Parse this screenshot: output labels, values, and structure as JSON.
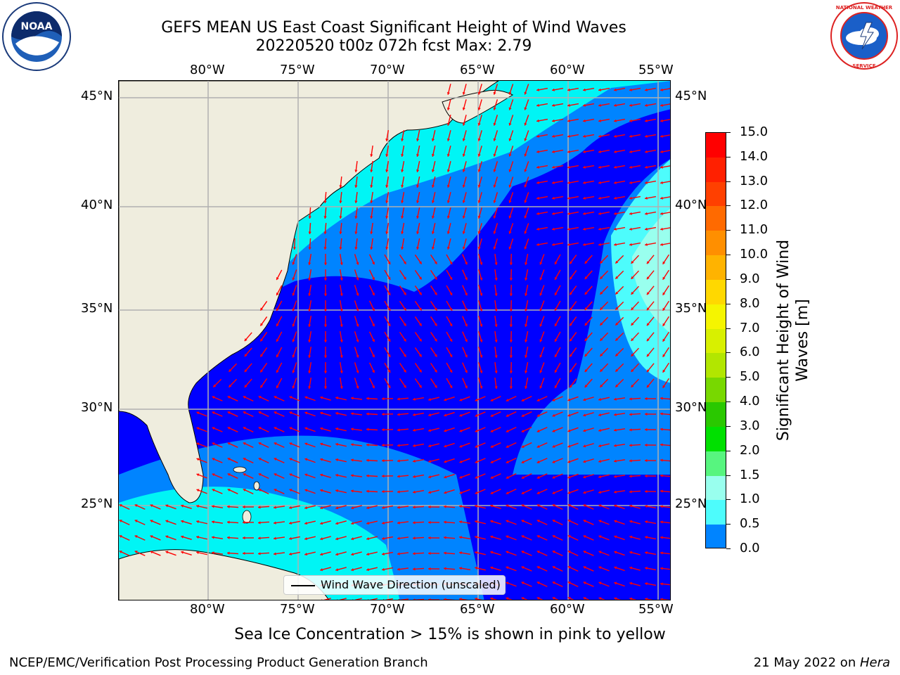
{
  "title": {
    "line1": "GEFS MEAN US East Coast Significant Height of Wind Waves",
    "line2": "20220520 t00z 072h fcst   Max: 2.79"
  },
  "logos": {
    "left": {
      "name": "noaa-logo",
      "text": "NOAA"
    },
    "right": {
      "name": "nws-logo",
      "text": "NATIONAL WEATHER SERVICE"
    }
  },
  "map": {
    "lon_ticks": [
      "80°W",
      "75°W",
      "70°W",
      "65°W",
      "60°W",
      "55°W"
    ],
    "lat_ticks": [
      "45°N",
      "40°N",
      "35°N",
      "30°N",
      "25°N"
    ],
    "legend_label": "Wind Wave Direction (unscaled)",
    "land_color": "#efedde",
    "arrow_color": "#ff0000"
  },
  "colorbar": {
    "title_line1": "Significant Height of Wind",
    "title_line2": "Waves [m]",
    "labels": [
      "15.0",
      "14.0",
      "13.0",
      "12.0",
      "11.0",
      "10.0",
      "9.0",
      "8.0",
      "7.0",
      "6.0",
      "5.0",
      "4.0",
      "3.0",
      "2.0",
      "1.5",
      "1.0",
      "0.5",
      "0.0"
    ],
    "colors": [
      "#ff0000",
      "#ff2000",
      "#ff4000",
      "#ff6a00",
      "#ff8f00",
      "#ffb300",
      "#ffd800",
      "#f5f500",
      "#d8f000",
      "#b2e600",
      "#78d800",
      "#2ac800",
      "#00e000",
      "#57f57f",
      "#99ffee",
      "#4dfcfc",
      "#00f5f5",
      "#0084ff",
      "#0000ff"
    ]
  },
  "subtitle": "Sea Ice Concentration > 15% is shown in pink to yellow",
  "footer": {
    "left": "NCEP/EMC/Verification Post Processing Product Generation Branch",
    "right_date": "21 May 2022 on ",
    "right_host": "Hera"
  }
}
